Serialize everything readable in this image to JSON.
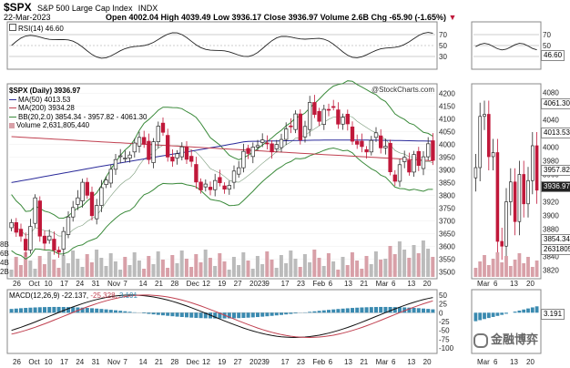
{
  "header": {
    "symbol": "$SPX",
    "name": "S&P 500 Large Cap Index",
    "exchange": "INDX",
    "date": "22-Mar-2023",
    "ohlc": "Open 4002.04  High 4039.49  Low 3936.17  Close 3936.97  Volume 2.6B  Chg -65.90 (-1.65%)",
    "ohlc_arrow": "▼"
  },
  "watermark": "@StockCharts.com",
  "legend": {
    "rsi": "RSI(14) 46.60",
    "price": "$SPX (Daily) 3936.97",
    "ma50": "MA(50) 4013.53",
    "ma200": "MA(200) 3934.28",
    "bb": "BB(20,2.0) 3854.34 - 3957.82 - 4061.30",
    "volume": "Volume 2,631,805,440",
    "macd_a": "MACD(12,26,9) -22.137,",
    "macd_b": "-25.328,",
    "macd_c": "3.191"
  },
  "colors": {
    "up": "#2a2a2a",
    "down": "#c0183a",
    "ma50": "#2a2a9a",
    "ma200": "#c04050",
    "bb": "#3a8a3a",
    "vol": "#d8a0a8",
    "hist": "#3a8ab0"
  },
  "watermark_cn": "金融博弈",
  "right_tags": {
    "rsi": "46.60",
    "ma50": "4013.53",
    "bb_top": "4061.30",
    "bb_mid": "3957.82",
    "close": "3936.97",
    "bb_low": "3854.34",
    "vol": "2631805",
    "macd": "3.191"
  },
  "chart_data": {
    "type": "candlestick",
    "x_labels": [
      "26",
      "Oct",
      "10",
      "17",
      "24",
      "31",
      "Nov",
      "7",
      "14",
      "21",
      "28",
      "Dec",
      "12",
      "19",
      "27",
      "2023",
      "9",
      "17",
      "23",
      "Feb",
      "6",
      "13",
      "21",
      "Mar",
      "6",
      "13",
      "20"
    ],
    "rsi_ticks": [
      70,
      50,
      30
    ],
    "rsi_ticks_right": [
      70,
      50,
      30
    ],
    "price_ticks": [
      3500,
      3550,
      3600,
      3650,
      3700,
      3750,
      3800,
      3850,
      3900,
      3950,
      4000,
      4050,
      4100,
      4150,
      4200
    ],
    "price_ticks_zoom": [
      3820,
      3840,
      3860,
      3880,
      3900,
      3920,
      3940,
      3960,
      3980,
      4000,
      4020,
      4040,
      4060,
      4080
    ],
    "volume_ticks": [
      "8B",
      "6B",
      "4B",
      "2B"
    ],
    "macd_ticks": [
      50,
      25,
      0,
      -25,
      -50,
      -75,
      -100
    ],
    "zoom_x_labels": [
      "Mar",
      "6",
      "13",
      "20"
    ],
    "closes": [
      3693,
      3655,
      3640,
      3585,
      3678,
      3790,
      3640,
      3612,
      3640,
      3585,
      3577,
      3658,
      3715,
      3752,
      3790,
      3851,
      3800,
      3720,
      3760,
      3830,
      3860,
      3902,
      3940,
      3955,
      3946,
      3958,
      4005,
      4027,
      4000,
      3940,
      4010,
      4071,
      4047,
      3950,
      3934,
      3963,
      3990,
      3941,
      3933,
      3852,
      3821,
      3844,
      3822,
      3858,
      3849,
      3824,
      3839,
      3895,
      3908,
      3972,
      3964,
      3989,
      3995,
      4017,
      4002,
      3970,
      3999,
      4019,
      4060,
      4070,
      4119,
      4017,
      4070,
      4164,
      4117,
      4090,
      4137,
      4136,
      4147,
      4079,
      4106,
      4080,
      4012,
      4000,
      3991,
      3970,
      4015,
      4045,
      3986,
      3992,
      3892,
      3855,
      3920,
      3949,
      3891,
      3960,
      3917,
      3951,
      4002,
      3937
    ],
    "zoom_closes": [
      3970,
      4045,
      4048,
      3986,
      3992,
      3862,
      3855,
      3920,
      3949,
      3891,
      3960,
      3917,
      3951,
      4002,
      3937
    ],
    "ma50_range": [
      3850,
      4013.53
    ],
    "ma200_range": [
      4030,
      3934.28
    ]
  }
}
